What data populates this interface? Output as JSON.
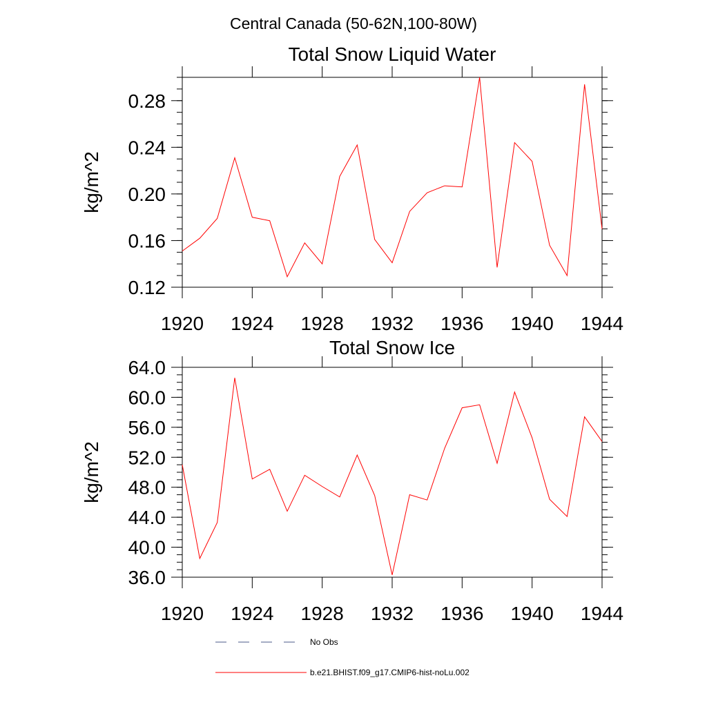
{
  "figure_title": "Central Canada (50-62N,100-80W)",
  "colors": {
    "model": "#ff0000",
    "obs": "#4a5a8a",
    "axes": "#000000"
  },
  "legend": [
    {
      "label": "No Obs",
      "style": "dashed",
      "color": "#4a5a8a"
    },
    {
      "label": "b.e21.BHIST.f09_g17.CMIP6-hist-noLu.002",
      "style": "solid",
      "color": "#ff0000"
    }
  ],
  "chart_data": [
    {
      "type": "line",
      "title": "Total Snow Liquid Water",
      "xlabel": "",
      "ylabel": "kg/m^2",
      "xlim": [
        1920,
        1944
      ],
      "ylim": [
        0.12,
        0.3
      ],
      "x_ticks": [
        "1920",
        "1924",
        "1928",
        "1932",
        "1936",
        "1940",
        "1944"
      ],
      "y_ticks": [
        "0.12",
        "0.16",
        "0.20",
        "0.24",
        "0.28"
      ],
      "grid": false,
      "x": [
        1920,
        1921,
        1922,
        1923,
        1924,
        1925,
        1926,
        1927,
        1928,
        1929,
        1930,
        1931,
        1932,
        1933,
        1934,
        1935,
        1936,
        1937,
        1938,
        1939,
        1940,
        1941,
        1942,
        1943,
        1944
      ],
      "series": [
        {
          "name": "b.e21.BHIST.f09_g17.CMIP6-hist-noLu.002",
          "values": [
            0.151,
            0.162,
            0.179,
            0.231,
            0.18,
            0.177,
            0.129,
            0.158,
            0.14,
            0.215,
            0.242,
            0.161,
            0.141,
            0.185,
            0.201,
            0.207,
            0.206,
            0.3,
            0.137,
            0.244,
            0.228,
            0.156,
            0.13,
            0.294,
            0.17
          ]
        }
      ]
    },
    {
      "type": "line",
      "title": "Total Snow Ice",
      "xlabel": "",
      "ylabel": "kg/m^2",
      "xlim": [
        1920,
        1944
      ],
      "ylim": [
        36.0,
        64.0
      ],
      "x_ticks": [
        "1920",
        "1924",
        "1928",
        "1932",
        "1936",
        "1940",
        "1944"
      ],
      "y_ticks": [
        "36.0",
        "40.0",
        "44.0",
        "48.0",
        "52.0",
        "56.0",
        "60.0",
        "64.0"
      ],
      "grid": false,
      "x": [
        1920,
        1921,
        1922,
        1923,
        1924,
        1925,
        1926,
        1927,
        1928,
        1929,
        1930,
        1931,
        1932,
        1933,
        1934,
        1935,
        1936,
        1937,
        1938,
        1939,
        1940,
        1941,
        1942,
        1943,
        1944
      ],
      "series": [
        {
          "name": "b.e21.BHIST.f09_g17.CMIP6-hist-noLu.002",
          "values": [
            51.0,
            38.5,
            43.3,
            62.6,
            49.1,
            50.4,
            44.8,
            49.6,
            48.1,
            46.7,
            52.3,
            46.9,
            36.3,
            47.0,
            46.3,
            53.2,
            58.6,
            59.0,
            51.2,
            60.7,
            54.6,
            46.4,
            44.1,
            57.4,
            54.1
          ]
        }
      ]
    }
  ]
}
